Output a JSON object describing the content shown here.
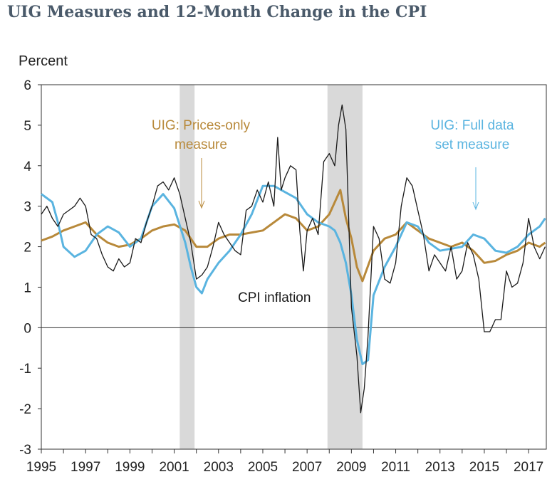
{
  "title": "UIG Measures and 12-Month Change in the CPI",
  "chart_data": {
    "type": "line",
    "title": "UIG Measures and 12-Month Change in the CPI",
    "ylabel": "Percent",
    "xlabel": "",
    "xlim": [
      1995,
      2017.8
    ],
    "ylim": [
      -3,
      6
    ],
    "x_ticks": [
      "1995",
      "1997",
      "1999",
      "2001",
      "2003",
      "2005",
      "2007",
      "2009",
      "2011",
      "2013",
      "2015",
      "2017"
    ],
    "y_ticks": [
      "-3",
      "-2",
      "-1",
      "0",
      "1",
      "2",
      "3",
      "4",
      "5",
      "6"
    ],
    "recessions": [
      [
        2001.25,
        2001.92
      ],
      [
        2007.92,
        2009.5
      ]
    ],
    "annotations": {
      "prices_only": [
        "UIG: Prices-only",
        "measure"
      ],
      "full_data": [
        "UIG: Full data",
        "set measure"
      ],
      "cpi": "CPI inflation"
    },
    "colors": {
      "cpi": "#1a1a1a",
      "prices_only": "#b8893a",
      "full_data": "#5ab4e0",
      "recession": "#d9d9d9"
    },
    "series": [
      {
        "name": "CPI inflation",
        "x": [
          1995.0,
          1995.25,
          1995.5,
          1995.75,
          1996.0,
          1996.25,
          1996.5,
          1996.75,
          1997.0,
          1997.25,
          1997.5,
          1997.75,
          1998.0,
          1998.25,
          1998.5,
          1998.75,
          1999.0,
          1999.25,
          1999.5,
          1999.75,
          2000.0,
          2000.25,
          2000.5,
          2000.75,
          2001.0,
          2001.25,
          2001.5,
          2001.75,
          2002.0,
          2002.25,
          2002.5,
          2002.75,
          2003.0,
          2003.25,
          2003.5,
          2003.75,
          2004.0,
          2004.25,
          2004.5,
          2004.75,
          2005.0,
          2005.25,
          2005.5,
          2005.67,
          2005.83,
          2006.0,
          2006.25,
          2006.5,
          2006.67,
          2006.83,
          2007.0,
          2007.25,
          2007.5,
          2007.75,
          2008.0,
          2008.25,
          2008.42,
          2008.58,
          2008.75,
          2009.0,
          2009.25,
          2009.42,
          2009.58,
          2009.75,
          2010.0,
          2010.25,
          2010.5,
          2010.75,
          2011.0,
          2011.25,
          2011.5,
          2011.75,
          2012.0,
          2012.25,
          2012.5,
          2012.75,
          2013.0,
          2013.25,
          2013.5,
          2013.75,
          2014.0,
          2014.25,
          2014.5,
          2014.75,
          2015.0,
          2015.25,
          2015.5,
          2015.75,
          2016.0,
          2016.25,
          2016.5,
          2016.75,
          2017.0,
          2017.25,
          2017.5,
          2017.75
        ],
        "y": [
          2.8,
          3.0,
          2.7,
          2.5,
          2.8,
          2.9,
          3.0,
          3.2,
          3.0,
          2.3,
          2.2,
          1.8,
          1.5,
          1.4,
          1.7,
          1.5,
          1.6,
          2.2,
          2.1,
          2.6,
          3.0,
          3.5,
          3.6,
          3.4,
          3.7,
          3.3,
          2.7,
          2.1,
          1.2,
          1.3,
          1.5,
          2.0,
          2.6,
          2.3,
          2.1,
          1.9,
          1.8,
          2.9,
          3.0,
          3.4,
          3.1,
          3.6,
          3.0,
          4.7,
          3.4,
          3.7,
          4.0,
          3.9,
          2.4,
          1.4,
          2.4,
          2.7,
          2.3,
          4.1,
          4.3,
          4.0,
          5.0,
          5.5,
          4.9,
          0.5,
          -0.7,
          -2.1,
          -1.5,
          -0.2,
          2.5,
          2.2,
          1.2,
          1.1,
          1.6,
          3.0,
          3.7,
          3.5,
          2.9,
          2.3,
          1.4,
          1.8,
          1.6,
          1.4,
          2.0,
          1.2,
          1.4,
          2.1,
          1.8,
          1.2,
          -0.1,
          -0.1,
          0.2,
          0.2,
          1.4,
          1.0,
          1.1,
          1.6,
          2.7,
          2.0,
          1.7,
          2.0
        ]
      },
      {
        "name": "UIG: Prices-only measure",
        "x": [
          1995.0,
          1995.5,
          1996.0,
          1996.5,
          1997.0,
          1997.5,
          1998.0,
          1998.5,
          1999.0,
          1999.5,
          2000.0,
          2000.5,
          2001.0,
          2001.5,
          2002.0,
          2002.5,
          2003.0,
          2003.5,
          2004.0,
          2004.5,
          2005.0,
          2005.5,
          2006.0,
          2006.5,
          2007.0,
          2007.5,
          2008.0,
          2008.5,
          2008.75,
          2009.0,
          2009.25,
          2009.5,
          2010.0,
          2010.5,
          2011.0,
          2011.5,
          2012.0,
          2012.5,
          2013.0,
          2013.5,
          2014.0,
          2014.5,
          2015.0,
          2015.5,
          2016.0,
          2016.5,
          2017.0,
          2017.5,
          2017.75
        ],
        "y": [
          2.15,
          2.25,
          2.4,
          2.5,
          2.6,
          2.3,
          2.1,
          2.0,
          2.05,
          2.2,
          2.4,
          2.5,
          2.55,
          2.4,
          2.0,
          2.0,
          2.2,
          2.3,
          2.3,
          2.35,
          2.4,
          2.6,
          2.8,
          2.7,
          2.4,
          2.5,
          2.8,
          3.4,
          2.7,
          2.2,
          1.5,
          1.15,
          1.9,
          2.2,
          2.3,
          2.6,
          2.4,
          2.2,
          2.1,
          2.0,
          2.1,
          1.9,
          1.6,
          1.65,
          1.8,
          1.9,
          2.1,
          2.0,
          2.1
        ]
      },
      {
        "name": "UIG: Full data set measure",
        "x": [
          1995.0,
          1995.5,
          1995.75,
          1996.0,
          1996.5,
          1997.0,
          1997.5,
          1998.0,
          1998.5,
          1999.0,
          1999.5,
          2000.0,
          2000.5,
          2001.0,
          2001.5,
          2001.75,
          2002.0,
          2002.25,
          2002.5,
          2003.0,
          2003.5,
          2004.0,
          2004.5,
          2005.0,
          2005.5,
          2006.0,
          2006.5,
          2007.0,
          2007.5,
          2008.0,
          2008.25,
          2008.5,
          2008.75,
          2009.0,
          2009.25,
          2009.5,
          2009.75,
          2010.0,
          2010.5,
          2011.0,
          2011.5,
          2012.0,
          2012.5,
          2013.0,
          2013.5,
          2014.0,
          2014.5,
          2015.0,
          2015.5,
          2016.0,
          2016.5,
          2017.0,
          2017.5,
          2017.75
        ],
        "y": [
          3.3,
          3.1,
          2.6,
          2.0,
          1.75,
          1.9,
          2.3,
          2.5,
          2.35,
          2.0,
          2.2,
          3.0,
          3.3,
          2.95,
          2.1,
          1.5,
          1.0,
          0.85,
          1.2,
          1.6,
          1.9,
          2.3,
          2.8,
          3.5,
          3.5,
          3.35,
          3.2,
          2.8,
          2.6,
          2.5,
          2.4,
          2.1,
          1.6,
          0.8,
          -0.3,
          -0.9,
          -0.8,
          0.8,
          1.5,
          2.0,
          2.6,
          2.5,
          2.1,
          1.9,
          1.95,
          2.0,
          2.3,
          2.2,
          1.9,
          1.85,
          2.0,
          2.3,
          2.5,
          2.7
        ]
      }
    ]
  }
}
